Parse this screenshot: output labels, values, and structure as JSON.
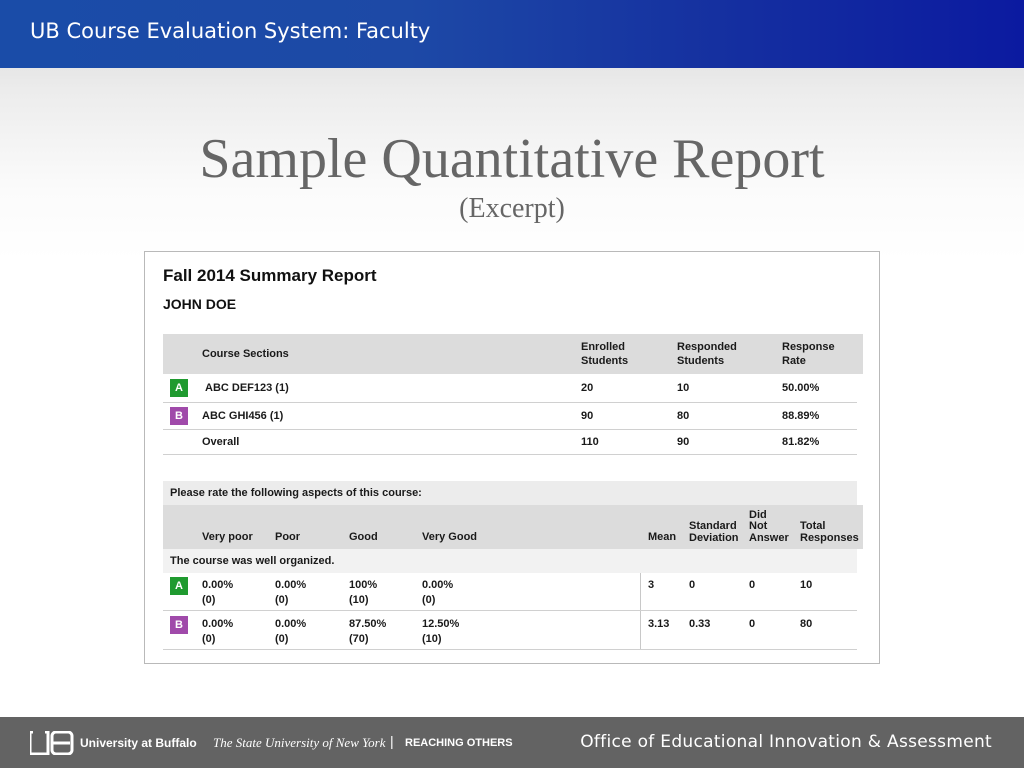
{
  "header": {
    "app_title": "UB Course Evaluation System: Faculty"
  },
  "slide": {
    "title": "Sample Quantitative Report",
    "subtitle": "(Excerpt)"
  },
  "report": {
    "title": "Fall 2014 Summary Report",
    "name": "JOHN DOE",
    "sections_table": {
      "headers": {
        "course_sections": "Course Sections",
        "enrolled_1": "Enrolled",
        "enrolled_2": "Students",
        "responded_1": "Responded",
        "responded_2": "Students",
        "rate_1": "Response",
        "rate_2": "Rate"
      },
      "rows": [
        {
          "badge": "A",
          "course": "ABC DEF123 (1)",
          "enrolled": "20",
          "responded": "10",
          "rate": "50.00%"
        },
        {
          "badge": "B",
          "course": "ABC GHI456 (1)",
          "enrolled": "90",
          "responded": "80",
          "rate": "88.89%"
        },
        {
          "badge": "",
          "course": "Overall",
          "enrolled": "110",
          "responded": "90",
          "rate": "81.82%"
        }
      ]
    },
    "ratings_table": {
      "prompt": "Please rate the following aspects of this course:",
      "headers": {
        "very_poor": "Very poor",
        "poor": "Poor",
        "good": "Good",
        "very_good": "Very Good",
        "mean": "Mean",
        "std_1": "Standard",
        "std_2": "Deviation",
        "dna_1": "Did",
        "dna_2": "Not",
        "dna_3": "Answer",
        "total_1": "Total",
        "total_2": "Responses"
      },
      "question": "The course was well organized.",
      "rows": [
        {
          "badge": "A",
          "very_poor_pct": "0.00%",
          "very_poor_n": "(0)",
          "poor_pct": "0.00%",
          "poor_n": "(0)",
          "good_pct": "100%",
          "good_n": "(10)",
          "very_good_pct": "0.00%",
          "very_good_n": "(0)",
          "mean": "3",
          "std": "0",
          "dna": "0",
          "total": "10"
        },
        {
          "badge": "B",
          "very_poor_pct": "0.00%",
          "very_poor_n": "(0)",
          "poor_pct": "0.00%",
          "poor_n": "(0)",
          "good_pct": "87.50%",
          "good_n": "(70)",
          "very_good_pct": "12.50%",
          "very_good_n": "(10)",
          "mean": "3.13",
          "std": "0.33",
          "dna": "0",
          "total": "80"
        }
      ]
    }
  },
  "footer": {
    "university": "University at Buffalo",
    "suny": "The State University of New York",
    "separator": "|",
    "tagline": "REACHING OTHERS",
    "office": "Office of Educational Innovation & Assessment"
  },
  "colors": {
    "header_blue": "#1d49a6",
    "badge_a": "#1f9a2f",
    "badge_b": "#a04aaa",
    "footer_gray": "#636363"
  },
  "icons": {
    "logo": "ub-logo-icon"
  }
}
